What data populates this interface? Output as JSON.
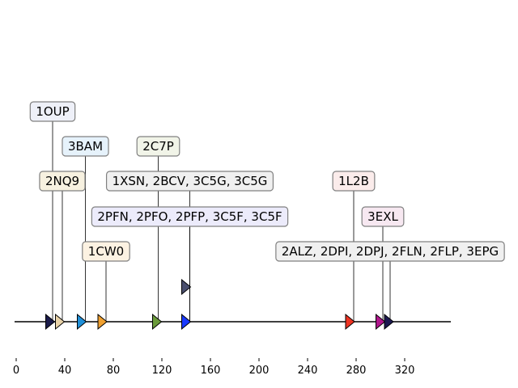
{
  "axis": {
    "min": 0,
    "max": 360,
    "ticks": [
      0,
      40,
      80,
      120,
      160,
      200,
      240,
      280,
      320
    ],
    "tick_labels": [
      "0",
      "40",
      "80",
      "120",
      "160",
      "200",
      "240",
      "280",
      "320"
    ]
  },
  "labels": [
    {
      "text": "1OUP",
      "x": 30,
      "level": 4,
      "bg": "#eef0f8"
    },
    {
      "text": "3BAM",
      "x": 57,
      "level": 3,
      "bg": "#e6f2fb"
    },
    {
      "text": "2C7P",
      "x": 117,
      "level": 3,
      "bg": "#f1f4e8"
    },
    {
      "text": "2NQ9",
      "x": 38,
      "level": 2,
      "bg": "#f7f1e0"
    },
    {
      "text": "1XSN, 2BCV, 3C5G, 3C5G",
      "x": 143,
      "level": 2,
      "bg": "#f0f0f0"
    },
    {
      "text": "1L2B",
      "x": 278,
      "level": 2,
      "bg": "#fbeceb"
    },
    {
      "text": "2PFN, 2PFO, 2PFP, 3C5F, 3C5F",
      "x": 143,
      "level": 1,
      "bg": "#ecebfb"
    },
    {
      "text": "3EXL",
      "x": 302,
      "level": 1,
      "bg": "#f7e8f1"
    },
    {
      "text": "1CW0",
      "x": 74,
      "level": 0,
      "bg": "#fcf2e2"
    },
    {
      "text": "2ALZ, 2DPI, 2DPJ, 2FLN, 2FLP, 3EPG",
      "x": 308,
      "level": 0,
      "bg": "#f0f0f0"
    }
  ],
  "markers": [
    {
      "x": 28,
      "row": 0,
      "color": "#1b1b4b"
    },
    {
      "x": 36,
      "row": 0,
      "color": "#e8d2a8"
    },
    {
      "x": 54,
      "row": 0,
      "color": "#1f8fd8"
    },
    {
      "x": 71,
      "row": 0,
      "color": "#f0a030"
    },
    {
      "x": 116,
      "row": 0,
      "color": "#6a9a3a"
    },
    {
      "x": 140,
      "row": 0,
      "color": "#1a3aff"
    },
    {
      "x": 140,
      "row": 1,
      "color": "#4a4f6e"
    },
    {
      "x": 275,
      "row": 0,
      "color": "#ee3322"
    },
    {
      "x": 300,
      "row": 0,
      "color": "#b0168c"
    },
    {
      "x": 307,
      "row": 0,
      "color": "#1c1850"
    }
  ]
}
